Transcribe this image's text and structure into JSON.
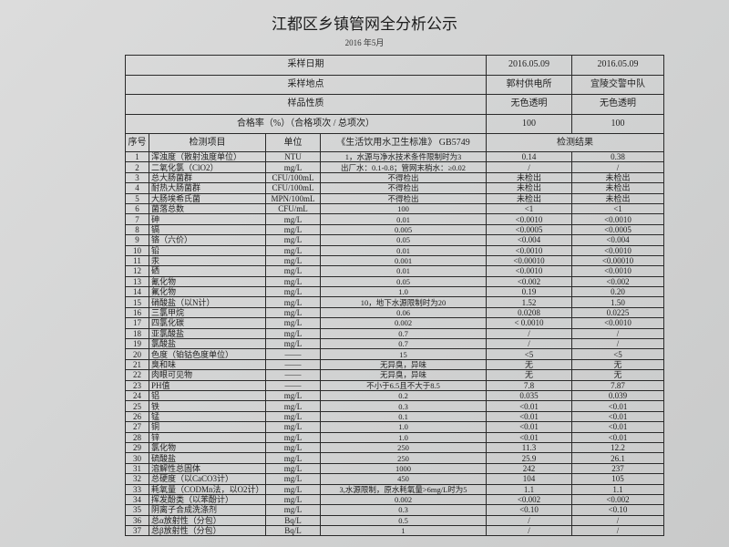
{
  "title": "江都区乡镇管网全分析公示",
  "subtitle": "2016 年5月",
  "header_rows": [
    {
      "label": "采样日期",
      "values": [
        "2016.05.09",
        "2016.05.09"
      ]
    },
    {
      "label": "采样地点",
      "values": [
        "郭村供电所",
        "宜陵交警中队"
      ]
    },
    {
      "label": "样品性质",
      "values": [
        "无色透明",
        "无色透明"
      ]
    },
    {
      "label": "合格率（%）（合格项次 / 总项次）",
      "values": [
        "100",
        "100"
      ]
    }
  ],
  "columns": {
    "seq": "序号",
    "item": "检测项目",
    "unit": "单位",
    "standard": "《生活饮用水卫生标准》 GB5749",
    "result": "检测结果"
  },
  "rows": [
    [
      "1",
      "浑浊度（散射浊度单位）",
      "NTU",
      "1，水源与净水技术条件限制时为3",
      "0.14",
      "0.38"
    ],
    [
      "2",
      "二氧化氯（ClO2）",
      "mg/L",
      "出厂水：0.1-0.8；管网末梢水：≥0.02",
      "/",
      "/"
    ],
    [
      "3",
      "总大肠菌群",
      "CFU/100mL",
      "不得检出",
      "未检出",
      "未检出"
    ],
    [
      "4",
      "耐热大肠菌群",
      "CFU/100mL",
      "不得检出",
      "未检出",
      "未检出"
    ],
    [
      "5",
      "大肠埃希氏菌",
      "MPN/100mL",
      "不得检出",
      "未检出",
      "未检出"
    ],
    [
      "6",
      "菌落总数",
      "CFU/mL",
      "100",
      "<1",
      "<1"
    ],
    [
      "7",
      "砷",
      "mg/L",
      "0.01",
      "<0.0010",
      "<0.0010"
    ],
    [
      "8",
      "镉",
      "mg/L",
      "0.005",
      "<0.0005",
      "<0.0005"
    ],
    [
      "9",
      "铬（六价）",
      "mg/L",
      "0.05",
      "<0.004",
      "<0.004"
    ],
    [
      "10",
      "铅",
      "mg/L",
      "0.01",
      "<0.0010",
      "<0.0010"
    ],
    [
      "11",
      "汞",
      "mg/L",
      "0.001",
      "<0.00010",
      "<0.00010"
    ],
    [
      "12",
      "硒",
      "mg/L",
      "0.01",
      "<0.0010",
      "<0.0010"
    ],
    [
      "13",
      "氰化物",
      "mg/L",
      "0.05",
      "<0.002",
      "<0.002"
    ],
    [
      "14",
      "氟化物",
      "mg/L",
      "1.0",
      "0.19",
      "0.20"
    ],
    [
      "15",
      "硝酸盐（以N计）",
      "mg/L",
      "10，地下水源限制时为20",
      "1.52",
      "1.50"
    ],
    [
      "16",
      "三氯甲烷",
      "mg/L",
      "0.06",
      "0.0208",
      "0.0225"
    ],
    [
      "17",
      "四氯化碳",
      "mg/L",
      "0.002",
      "< 0.0010",
      "<0.0010"
    ],
    [
      "18",
      "亚氯酸盐",
      "mg/L",
      "0.7",
      "/",
      "/"
    ],
    [
      "19",
      "氯酸盐",
      "mg/L",
      "0.7",
      "/",
      "/"
    ],
    [
      "20",
      "色度（铂钴色度单位）",
      "——",
      "15",
      "<5",
      "<5"
    ],
    [
      "21",
      "臭和味",
      "——",
      "无异臭，异味",
      "无",
      "无"
    ],
    [
      "22",
      "肉眼可见物",
      "——",
      "无异臭，异味",
      "无",
      "无"
    ],
    [
      "23",
      "PH值",
      "——",
      "不小于6.5且不大于8.5",
      "7.8",
      "7.87"
    ],
    [
      "24",
      "铝",
      "mg/L",
      "0.2",
      "0.035",
      "0.039"
    ],
    [
      "25",
      "铁",
      "mg/L",
      "0.3",
      "<0.01",
      "<0.01"
    ],
    [
      "26",
      "锰",
      "mg/L",
      "0.1",
      "<0.01",
      "<0.01"
    ],
    [
      "27",
      "铜",
      "mg/L",
      "1.0",
      "<0.01",
      "<0.01"
    ],
    [
      "28",
      "锌",
      "mg/L",
      "1.0",
      "<0.01",
      "<0.01"
    ],
    [
      "29",
      "氯化物",
      "mg/L",
      "250",
      "11.3",
      "12.2"
    ],
    [
      "30",
      "硫酸盐",
      "mg/L",
      "250",
      "25.9",
      "26.1"
    ],
    [
      "31",
      "溶解性总固体",
      "mg/L",
      "1000",
      "242",
      "237"
    ],
    [
      "32",
      "总硬度（以CaCO3计）",
      "mg/L",
      "450",
      "104",
      "105"
    ],
    [
      "33",
      "耗氧量（CODMn法，以O2计）",
      "mg/L",
      "3,水源限制，原水耗氧量>6mg/L时为5",
      "1.1",
      "1.1"
    ],
    [
      "34",
      "挥发酚类（以苯酚计）",
      "mg/L",
      "0.002",
      "<0.002",
      "<0.002"
    ],
    [
      "35",
      "阴离子合成洗涤剂",
      "mg/L",
      "0.3",
      "<0.10",
      "<0.10"
    ],
    [
      "36",
      "总α放射性（分包）",
      "Bq/L",
      "0.5",
      "/",
      "/"
    ],
    [
      "37",
      "总β放射性（分包）",
      "Bq/L",
      "1",
      "/",
      "/"
    ]
  ]
}
